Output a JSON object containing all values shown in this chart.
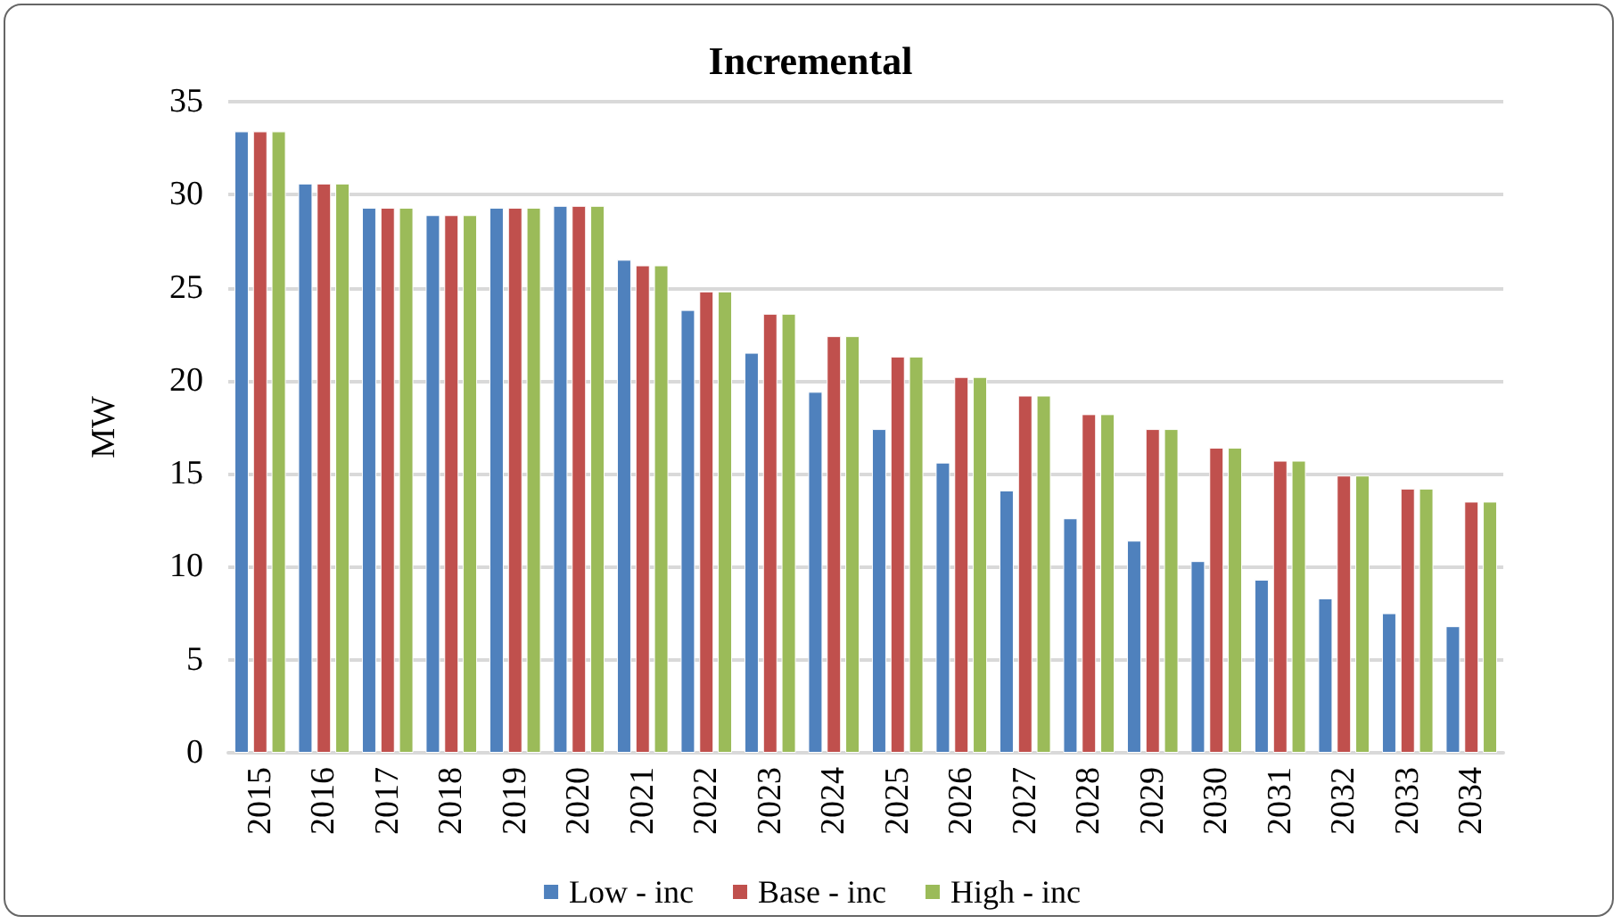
{
  "chart_data": {
    "type": "bar",
    "title": "Incremental",
    "ylabel": "MW",
    "categories": [
      "2015",
      "2016",
      "2017",
      "2018",
      "2019",
      "2020",
      "2021",
      "2022",
      "2023",
      "2024",
      "2025",
      "2026",
      "2027",
      "2028",
      "2029",
      "2030",
      "2031",
      "2032",
      "2033",
      "2034"
    ],
    "series": [
      {
        "name": "Low - inc",
        "color": "#4f81bd",
        "values": [
          33.4,
          30.6,
          29.3,
          28.9,
          29.3,
          29.4,
          26.5,
          23.8,
          21.5,
          19.4,
          17.4,
          15.6,
          14.1,
          12.6,
          11.4,
          10.3,
          9.3,
          8.3,
          7.5,
          6.8
        ]
      },
      {
        "name": "Base - inc",
        "color": "#c0504d",
        "values": [
          33.4,
          30.6,
          29.3,
          28.9,
          29.3,
          29.4,
          26.2,
          24.8,
          23.6,
          22.4,
          21.3,
          20.2,
          19.2,
          18.2,
          17.4,
          16.4,
          15.7,
          14.9,
          14.2,
          13.5
        ]
      },
      {
        "name": "High - inc",
        "color": "#9bbb59",
        "values": [
          33.4,
          30.6,
          29.3,
          28.9,
          29.3,
          29.4,
          26.2,
          24.8,
          23.6,
          22.4,
          21.3,
          20.2,
          19.2,
          18.2,
          17.4,
          16.4,
          15.7,
          14.9,
          14.2,
          13.5
        ]
      }
    ],
    "ylim": [
      0,
      35
    ],
    "yticks": [
      0,
      5,
      10,
      15,
      20,
      25,
      30,
      35
    ],
    "grid": "y",
    "legend": "bottom"
  }
}
